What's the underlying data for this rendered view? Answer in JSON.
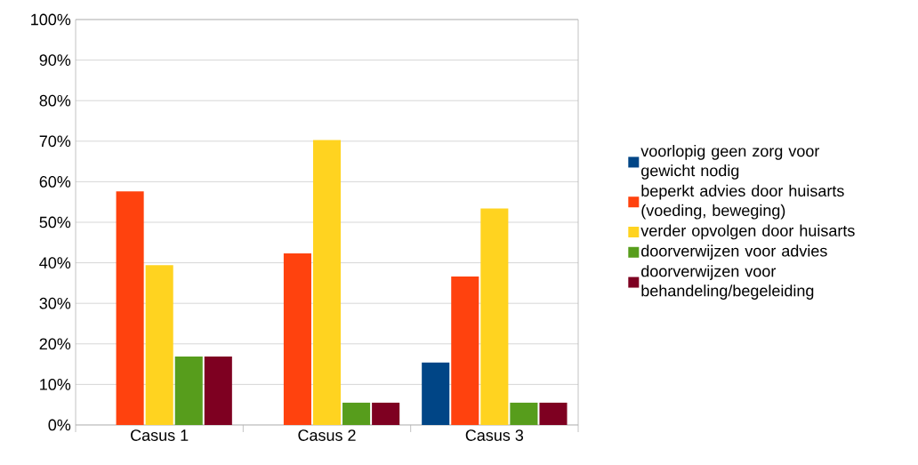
{
  "chart_data": {
    "type": "bar",
    "categories": [
      "Casus 1",
      "Casus 2",
      "Casus 3"
    ],
    "series": [
      {
        "name": "voorlopig geen zorg voor gewicht nodig",
        "color": "#004586",
        "values": [
          0,
          0,
          15.4
        ]
      },
      {
        "name": "beperkt advies door huisarts (voeding, beweging)",
        "color": "#ff420e",
        "values": [
          57.6,
          42.3,
          36.6
        ]
      },
      {
        "name": "verder opvolgen door huisarts",
        "color": "#ffd320",
        "values": [
          39.4,
          70.3,
          53.4
        ]
      },
      {
        "name": "doorverwijzen voor advies",
        "color": "#579d1c",
        "values": [
          16.9,
          5.5,
          5.5
        ]
      },
      {
        "name": "doorverwijzen voor behandeling/begeleiding",
        "color": "#7e0021",
        "values": [
          16.9,
          5.5,
          5.5
        ]
      }
    ],
    "ylim": [
      0,
      100
    ],
    "yticks": [
      {
        "value": 0,
        "label": "0%"
      },
      {
        "value": 10,
        "label": "10%"
      },
      {
        "value": 20,
        "label": "20%"
      },
      {
        "value": 30,
        "label": "30%"
      },
      {
        "value": 40,
        "label": "40%"
      },
      {
        "value": 50,
        "label": "50%"
      },
      {
        "value": 60,
        "label": "60%"
      },
      {
        "value": 70,
        "label": "70%"
      },
      {
        "value": 80,
        "label": "80%"
      },
      {
        "value": 90,
        "label": "90%"
      },
      {
        "value": 100,
        "label": "100%"
      }
    ],
    "grid": "y",
    "legend": "right"
  }
}
